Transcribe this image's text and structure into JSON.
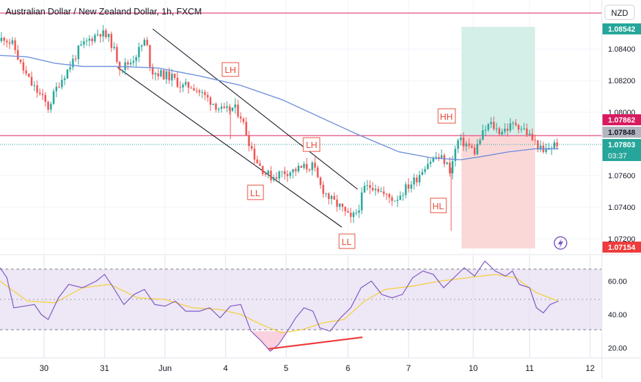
{
  "header": {
    "title": "Australian Dollar / New Zealand Dollar, 1h, FXCM",
    "currency": "NZD"
  },
  "colors": {
    "up": "#26a69a",
    "down": "#ef5350",
    "ma": "#6f8fdc",
    "level_line": "#d81b60",
    "rsi_line": "#7e57c2",
    "rsi_ma": "#f4d03f",
    "rsi_band": "#ede7f6",
    "profit_zone": "#cfece5",
    "loss_zone": "#fbd4d4",
    "divergence": "#ef3b3b"
  },
  "chart_data": [
    {
      "type": "candlestick",
      "symbol": "AUDNZD",
      "timeframe": "1h",
      "ylim": [
        1.071,
        1.0871
      ],
      "y_ticks": [
        "1.07200",
        "1.07400",
        "1.07600",
        "1.07800",
        "1.08000",
        "1.08200",
        "1.08400"
      ],
      "x_ticks": [
        "30",
        "31",
        "Jun",
        "4",
        "5",
        "6",
        "7",
        "10",
        "11",
        "12"
      ],
      "price_labels": [
        {
          "value": "1.08542",
          "kind": "target"
        },
        {
          "value": "1.07862",
          "kind": "level"
        },
        {
          "value": "1.07848",
          "kind": "entry"
        },
        {
          "value": "1.07803",
          "kind": "last"
        },
        {
          "value": "03:37",
          "kind": "countdown"
        },
        {
          "value": "1.07154",
          "kind": "stop"
        }
      ],
      "levels": [
        1.087,
        1.07862
      ],
      "annotations": [
        "LH",
        "LH",
        "LL",
        "LL",
        "HH",
        "HL"
      ],
      "path_points": [
        [
          0,
          1.0845
        ],
        [
          5,
          1.0848
        ],
        [
          20,
          1.0842
        ],
        [
          30,
          1.083
        ],
        [
          45,
          1.0818
        ],
        [
          60,
          1.081
        ],
        [
          70,
          1.0803
        ],
        [
          85,
          1.0818
        ],
        [
          100,
          1.0828
        ],
        [
          115,
          1.084
        ],
        [
          130,
          1.0846
        ],
        [
          145,
          1.0851
        ],
        [
          160,
          1.0846
        ],
        [
          175,
          1.0828
        ],
        [
          190,
          1.0832
        ],
        [
          200,
          1.0838
        ],
        [
          212,
          1.0846
        ],
        [
          220,
          1.0826
        ],
        [
          235,
          1.0824
        ],
        [
          250,
          1.0822
        ],
        [
          265,
          1.0816
        ],
        [
          280,
          1.0817
        ],
        [
          295,
          1.0811
        ],
        [
          310,
          1.0806
        ],
        [
          325,
          1.08
        ],
        [
          340,
          1.0803
        ],
        [
          350,
          1.0798
        ],
        [
          360,
          1.0784
        ],
        [
          372,
          1.077
        ],
        [
          385,
          1.0762
        ],
        [
          395,
          1.0759
        ],
        [
          410,
          1.0762
        ],
        [
          425,
          1.0763
        ],
        [
          440,
          1.0765
        ],
        [
          455,
          1.0766
        ],
        [
          465,
          1.0754
        ],
        [
          480,
          1.0745
        ],
        [
          495,
          1.074
        ],
        [
          510,
          1.0732
        ],
        [
          520,
          1.0738
        ],
        [
          530,
          1.0752
        ],
        [
          545,
          1.0754
        ],
        [
          560,
          1.0747
        ],
        [
          575,
          1.0745
        ],
        [
          590,
          1.0752
        ],
        [
          605,
          1.0758
        ],
        [
          620,
          1.0768
        ],
        [
          635,
          1.0772
        ],
        [
          645,
          1.077
        ],
        [
          655,
          1.0763
        ],
        [
          665,
          1.0782
        ],
        [
          678,
          1.078
        ],
        [
          690,
          1.0775
        ],
        [
          700,
          1.0785
        ],
        [
          712,
          1.0793
        ],
        [
          725,
          1.0788
        ],
        [
          738,
          1.079
        ],
        [
          750,
          1.0793
        ],
        [
          762,
          1.0789
        ],
        [
          772,
          1.0784
        ],
        [
          780,
          1.078
        ],
        [
          790,
          1.0774
        ],
        [
          800,
          1.0778
        ],
        [
          812,
          1.0781
        ]
      ],
      "moving_average": [
        [
          0,
          1.0836
        ],
        [
          40,
          1.0835
        ],
        [
          80,
          1.0831
        ],
        [
          120,
          1.0829
        ],
        [
          170,
          1.0829
        ],
        [
          230,
          1.0828
        ],
        [
          290,
          1.0823
        ],
        [
          350,
          1.0817
        ],
        [
          410,
          1.0808
        ],
        [
          470,
          1.0796
        ],
        [
          520,
          1.0786
        ],
        [
          580,
          1.0775
        ],
        [
          630,
          1.0771
        ],
        [
          670,
          1.077
        ],
        [
          700,
          1.0772
        ],
        [
          740,
          1.0775
        ],
        [
          780,
          1.0777
        ],
        [
          812,
          1.0777
        ]
      ]
    },
    {
      "type": "line",
      "indicator": "RSI",
      "ylim": [
        14,
        75
      ],
      "y_ticks": [
        "20.00",
        "40.00",
        "60.00"
      ],
      "bands": [
        30,
        50,
        70
      ],
      "series_points": [
        [
          0,
          68
        ],
        [
          10,
          62
        ],
        [
          20,
          44
        ],
        [
          35,
          45
        ],
        [
          50,
          46
        ],
        [
          60,
          40
        ],
        [
          70,
          37
        ],
        [
          85,
          50
        ],
        [
          100,
          58
        ],
        [
          120,
          56
        ],
        [
          140,
          60
        ],
        [
          152,
          64
        ],
        [
          165,
          56
        ],
        [
          180,
          46
        ],
        [
          195,
          52
        ],
        [
          210,
          55
        ],
        [
          225,
          46
        ],
        [
          240,
          45
        ],
        [
          255,
          48
        ],
        [
          270,
          42
        ],
        [
          290,
          42
        ],
        [
          305,
          44
        ],
        [
          320,
          38
        ],
        [
          335,
          45
        ],
        [
          350,
          46
        ],
        [
          365,
          30
        ],
        [
          380,
          24
        ],
        [
          393,
          18
        ],
        [
          405,
          22
        ],
        [
          418,
          30
        ],
        [
          430,
          38
        ],
        [
          442,
          44
        ],
        [
          455,
          42
        ],
        [
          465,
          32
        ],
        [
          480,
          30
        ],
        [
          495,
          38
        ],
        [
          510,
          44
        ],
        [
          525,
          56
        ],
        [
          540,
          60
        ],
        [
          555,
          52
        ],
        [
          570,
          50
        ],
        [
          585,
          52
        ],
        [
          600,
          62
        ],
        [
          615,
          66
        ],
        [
          630,
          64
        ],
        [
          645,
          56
        ],
        [
          660,
          62
        ],
        [
          675,
          68
        ],
        [
          690,
          63
        ],
        [
          705,
          72
        ],
        [
          720,
          66
        ],
        [
          735,
          63
        ],
        [
          745,
          66
        ],
        [
          755,
          58
        ],
        [
          770,
          56
        ],
        [
          780,
          44
        ],
        [
          790,
          41
        ],
        [
          800,
          46
        ],
        [
          812,
          48
        ]
      ],
      "signal_points": [
        [
          0,
          60
        ],
        [
          40,
          48
        ],
        [
          80,
          47
        ],
        [
          120,
          56
        ],
        [
          160,
          58
        ],
        [
          200,
          50
        ],
        [
          240,
          49
        ],
        [
          280,
          44
        ],
        [
          320,
          43
        ],
        [
          350,
          40
        ],
        [
          380,
          34
        ],
        [
          410,
          29
        ],
        [
          440,
          31
        ],
        [
          470,
          35
        ],
        [
          500,
          37
        ],
        [
          530,
          48
        ],
        [
          560,
          55
        ],
        [
          600,
          57
        ],
        [
          640,
          60
        ],
        [
          680,
          62
        ],
        [
          720,
          64
        ],
        [
          750,
          62
        ],
        [
          780,
          53
        ],
        [
          812,
          48
        ]
      ]
    }
  ]
}
